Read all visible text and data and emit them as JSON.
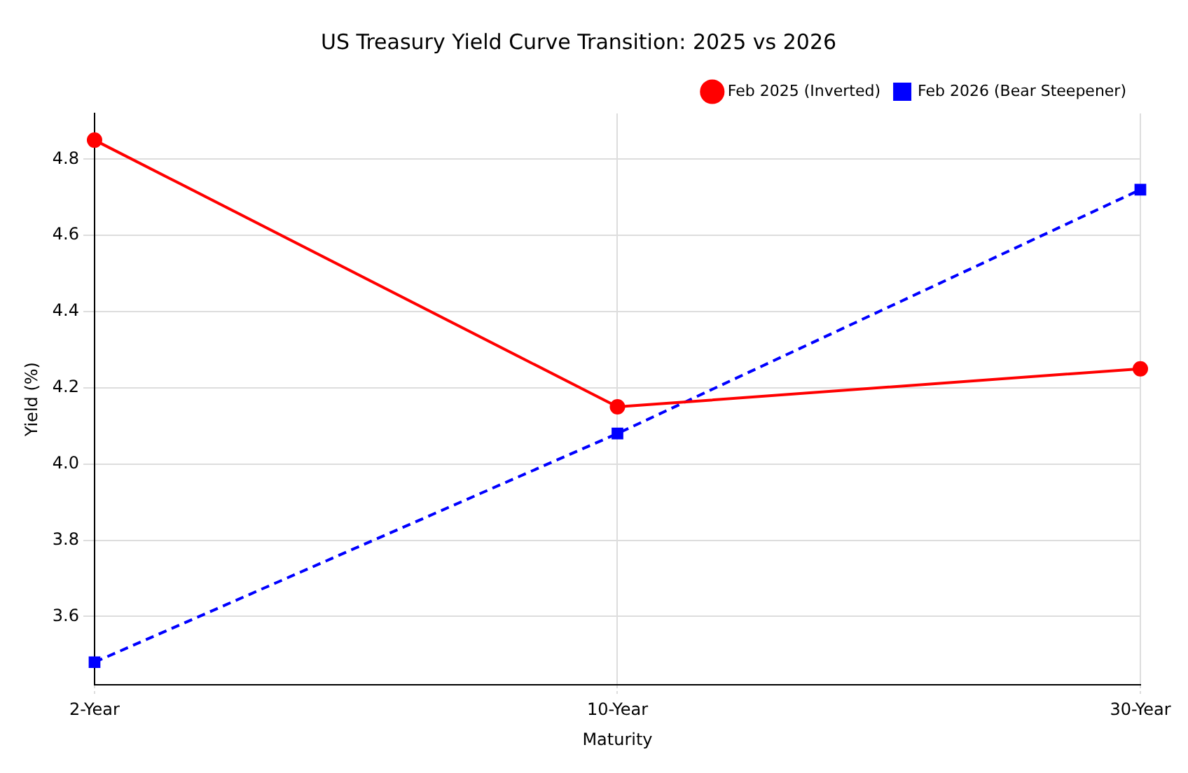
{
  "chart_data": {
    "type": "line",
    "title": "US Treasury Yield Curve Transition: 2025 vs 2026",
    "xlabel": "Maturity",
    "ylabel": "Yield (%)",
    "categories": [
      "2-Year",
      "10-Year",
      "30-Year"
    ],
    "series": [
      {
        "name": "Feb 2025 (Inverted)",
        "color": "#ff0000",
        "values": [
          4.85,
          4.15,
          4.25
        ],
        "marker": "circle",
        "line_style": "solid"
      },
      {
        "name": "Feb 2026 (Bear Steepener)",
        "color": "#0000ff",
        "values": [
          3.48,
          4.08,
          4.72
        ],
        "marker": "square",
        "line_style": "dashed"
      }
    ],
    "ylim": [
      3.42,
      4.92
    ],
    "yticks": [
      3.6,
      3.8,
      {
        "value": 4,
        "label": "4.0"
      },
      4.2,
      4.4,
      4.6,
      4.8
    ],
    "grid": true,
    "legend": "top right"
  }
}
